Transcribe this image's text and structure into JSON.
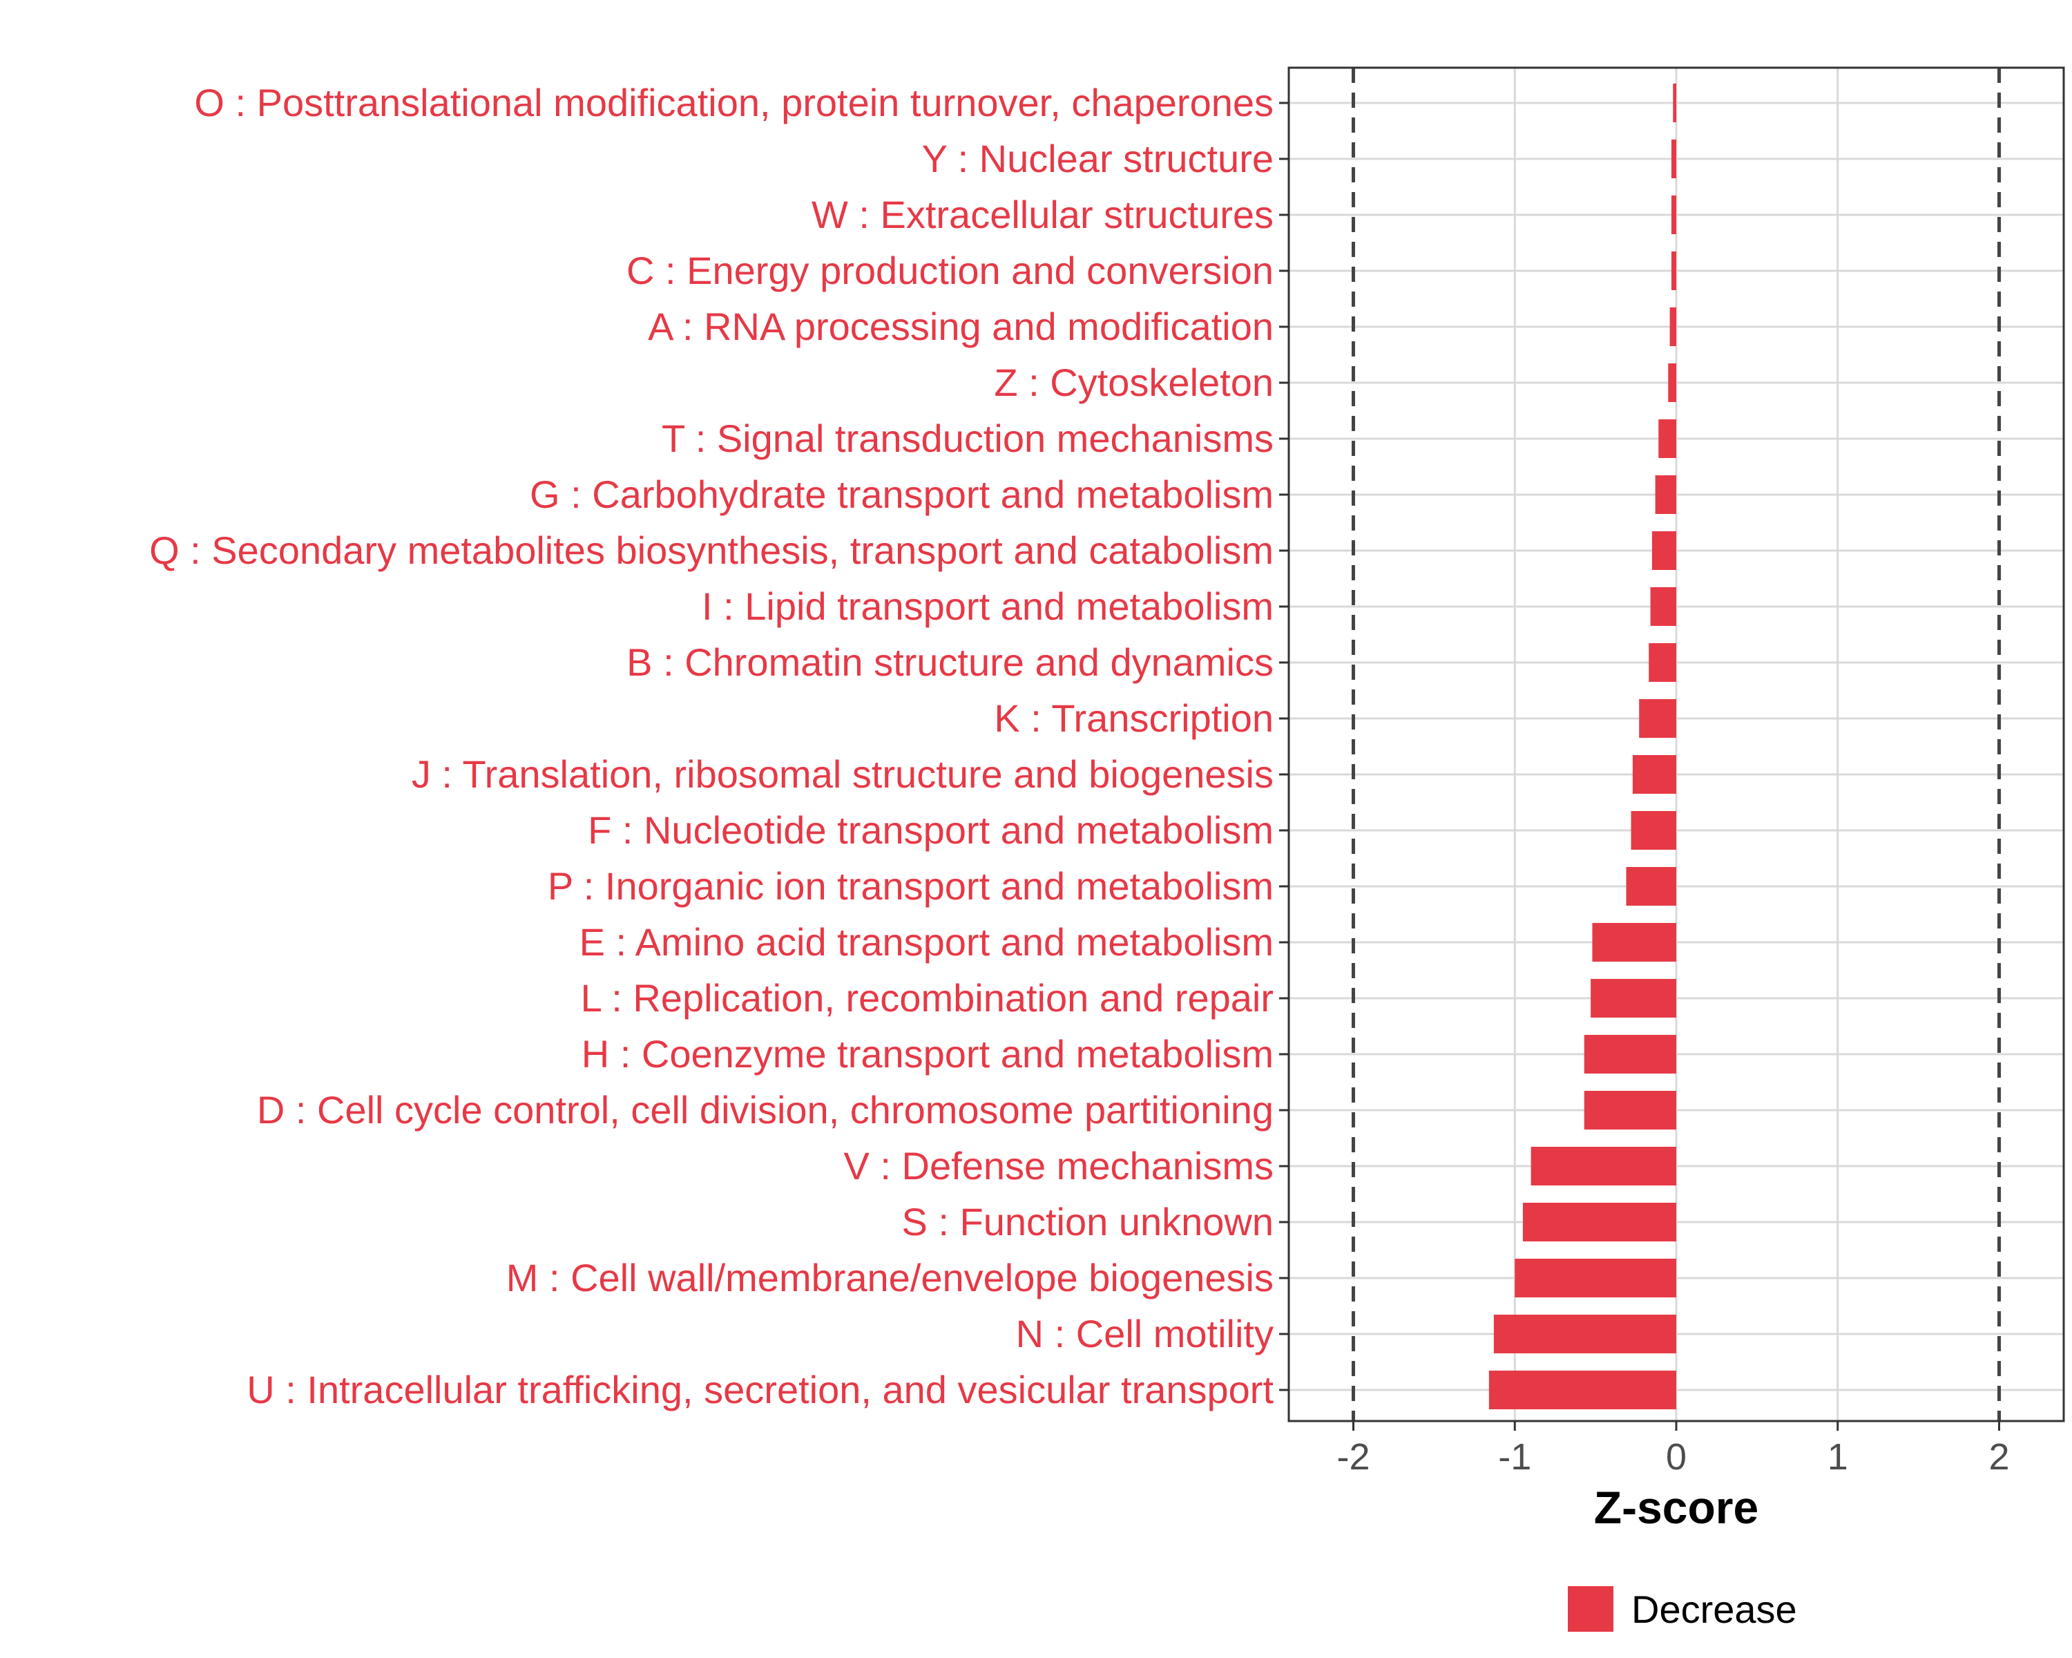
{
  "chart_data": {
    "type": "bar",
    "orientation": "horizontal",
    "categories": [
      "O : Posttranslational modification, protein turnover, chaperones",
      "Y : Nuclear structure",
      "W : Extracellular structures",
      "C : Energy production and conversion",
      "A : RNA processing and modification",
      "Z : Cytoskeleton",
      "T : Signal transduction mechanisms",
      "G : Carbohydrate transport and metabolism",
      "Q : Secondary metabolites biosynthesis, transport and catabolism",
      "I : Lipid transport and metabolism",
      "B : Chromatin structure and dynamics",
      "K : Transcription",
      "J : Translation, ribosomal structure and biogenesis",
      "F : Nucleotide transport and metabolism",
      "P : Inorganic ion transport and metabolism",
      "E : Amino acid transport and metabolism",
      "L : Replication, recombination and repair",
      "H : Coenzyme transport and metabolism",
      "D : Cell cycle control, cell division, chromosome partitioning",
      "V : Defense mechanisms",
      "S : Function unknown",
      "M : Cell wall/membrane/envelope biogenesis",
      "N : Cell motility",
      "U : Intracellular trafficking, secretion, and vesicular transport"
    ],
    "values": [
      -0.02,
      -0.03,
      -0.03,
      -0.03,
      -0.04,
      -0.05,
      -0.11,
      -0.13,
      -0.15,
      -0.16,
      -0.17,
      -0.23,
      -0.27,
      -0.28,
      -0.31,
      -0.52,
      -0.53,
      -0.57,
      -0.57,
      -0.9,
      -0.95,
      -1.0,
      -1.13,
      -1.16
    ],
    "xlabel": "Z-score",
    "xlim": [
      -2.4,
      2.4
    ],
    "xticks": [
      "-2",
      "-1",
      "0",
      "1",
      "2"
    ],
    "xtick_values": [
      -2,
      -1,
      0,
      1,
      2
    ],
    "threshold_lines": [
      -2,
      2
    ],
    "grid": true,
    "legend": {
      "position": "bottom",
      "entries": [
        {
          "label": "Decrease",
          "color": "#e63946"
        }
      ]
    },
    "colors": {
      "bar": "#e63946",
      "label": "#e63946",
      "grid": "#d9d9d9",
      "threshold": "#444444",
      "panel_border": "#333333"
    }
  }
}
